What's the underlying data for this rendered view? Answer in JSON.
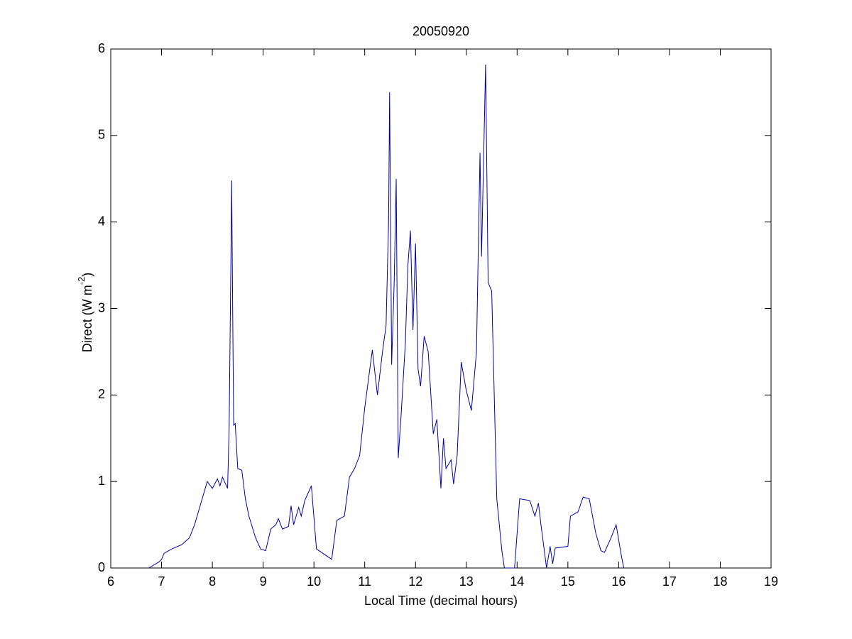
{
  "chart_data": {
    "type": "line",
    "title": "20050920",
    "x_label": "Local Time (decimal hours)",
    "y_label_parts": [
      "Direct (W m",
      "-2",
      ")"
    ],
    "xlim": [
      6,
      19
    ],
    "xticks": [
      6,
      7,
      8,
      9,
      10,
      11,
      12,
      13,
      14,
      15,
      16,
      17,
      18,
      19
    ],
    "ylim": [
      0,
      6
    ],
    "yticks": [
      0,
      1,
      2,
      3,
      4,
      5,
      6
    ],
    "grid": false,
    "series": [
      {
        "color": "#0000aa",
        "x": [
          6.75,
          6.95,
          7.0,
          7.05,
          7.2,
          7.4,
          7.55,
          7.65,
          7.8,
          7.9,
          8.0,
          8.1,
          8.15,
          8.2,
          8.3,
          8.33,
          8.37,
          8.38,
          8.4,
          8.42,
          8.45,
          8.5,
          8.58,
          8.65,
          8.72,
          8.85,
          8.95,
          9.05,
          9.15,
          9.25,
          9.3,
          9.38,
          9.5,
          9.55,
          9.6,
          9.7,
          9.75,
          9.82,
          9.95,
          10.05,
          10.35,
          10.45,
          10.6,
          10.7,
          10.8,
          10.9,
          11.0,
          11.1,
          11.15,
          11.25,
          11.35,
          11.42,
          11.47,
          11.49,
          11.53,
          11.58,
          11.62,
          11.66,
          11.72,
          11.8,
          11.85,
          11.9,
          11.95,
          12.0,
          12.05,
          12.1,
          12.17,
          12.25,
          12.35,
          12.42,
          12.5,
          12.55,
          12.6,
          12.7,
          12.75,
          12.82,
          12.9,
          13.0,
          13.1,
          13.2,
          13.27,
          13.3,
          13.38,
          13.43,
          13.5,
          13.6,
          13.7,
          13.75,
          13.95,
          14.05,
          14.25,
          14.35,
          14.42,
          14.47,
          14.58,
          14.65,
          14.7,
          14.75,
          15.0,
          15.05,
          15.2,
          15.3,
          15.42,
          15.55,
          15.65,
          15.72,
          15.85,
          15.95,
          16.05,
          16.1
        ],
        "values": [
          0,
          0.07,
          0.1,
          0.17,
          0.22,
          0.27,
          0.35,
          0.5,
          0.8,
          1.0,
          0.92,
          1.03,
          0.95,
          1.05,
          0.92,
          1.6,
          3.8,
          4.48,
          3.0,
          1.65,
          1.67,
          1.15,
          1.13,
          0.8,
          0.6,
          0.35,
          0.22,
          0.2,
          0.45,
          0.5,
          0.57,
          0.45,
          0.48,
          0.72,
          0.5,
          0.7,
          0.6,
          0.78,
          0.95,
          0.22,
          0.1,
          0.55,
          0.6,
          1.05,
          1.15,
          1.3,
          1.85,
          2.3,
          2.52,
          2.0,
          2.5,
          2.8,
          4.0,
          5.5,
          2.35,
          3.3,
          4.5,
          1.27,
          1.8,
          2.6,
          3.5,
          3.9,
          2.75,
          3.75,
          2.3,
          2.1,
          2.68,
          2.5,
          1.55,
          1.72,
          0.92,
          1.5,
          1.15,
          1.25,
          0.97,
          1.3,
          2.38,
          2.05,
          1.82,
          2.5,
          4.8,
          3.6,
          5.82,
          3.3,
          3.2,
          0.8,
          0.2,
          0,
          0,
          0.8,
          0.78,
          0.6,
          0.75,
          0.5,
          0,
          0.25,
          0.05,
          0.23,
          0.25,
          0.6,
          0.65,
          0.82,
          0.8,
          0.4,
          0.2,
          0.18,
          0.35,
          0.5,
          0.15,
          0
        ]
      }
    ]
  }
}
